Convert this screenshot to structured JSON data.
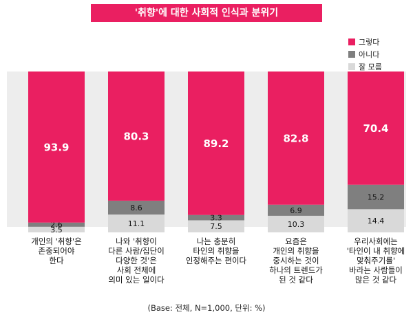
{
  "title": "'취향'에 대한 사회적 인식과 분위기",
  "footnote": "(Base: 전체, N=1,000, 단위: %)",
  "chart_data": {
    "type": "bar",
    "stacked": true,
    "unit": "%",
    "ylim": [
      0,
      100
    ],
    "grid": false,
    "legend_position": "top-right",
    "categories": [
      "개인의 '취향'은\n존중되어야\n한다",
      "나와 '취향이\n다른 사람/집단이\n다양한 것'은\n사회 전체에\n의미 있는 일이다",
      "나는 충분히\n타인의 취향을\n인정해주는 편이다",
      "요즘은\n개인의 취향을\n중시하는 것이\n하나의 트렌드가\n된 것 같다",
      "우리사회에는\n'타인이 내 취향에\n맞춰주기를'\n바라는 사람들이\n많은 것 같다"
    ],
    "series": [
      {
        "name": "그렇다",
        "color": "#ea1f61",
        "values": [
          93.9,
          80.3,
          89.2,
          82.8,
          70.4
        ]
      },
      {
        "name": "아니다",
        "color": "#7f7f7f",
        "values": [
          2.6,
          8.6,
          3.3,
          6.9,
          15.2
        ]
      },
      {
        "name": "잘 모름",
        "color": "#d9d9d9",
        "values": [
          3.5,
          11.1,
          7.5,
          10.3,
          14.4
        ]
      }
    ]
  }
}
